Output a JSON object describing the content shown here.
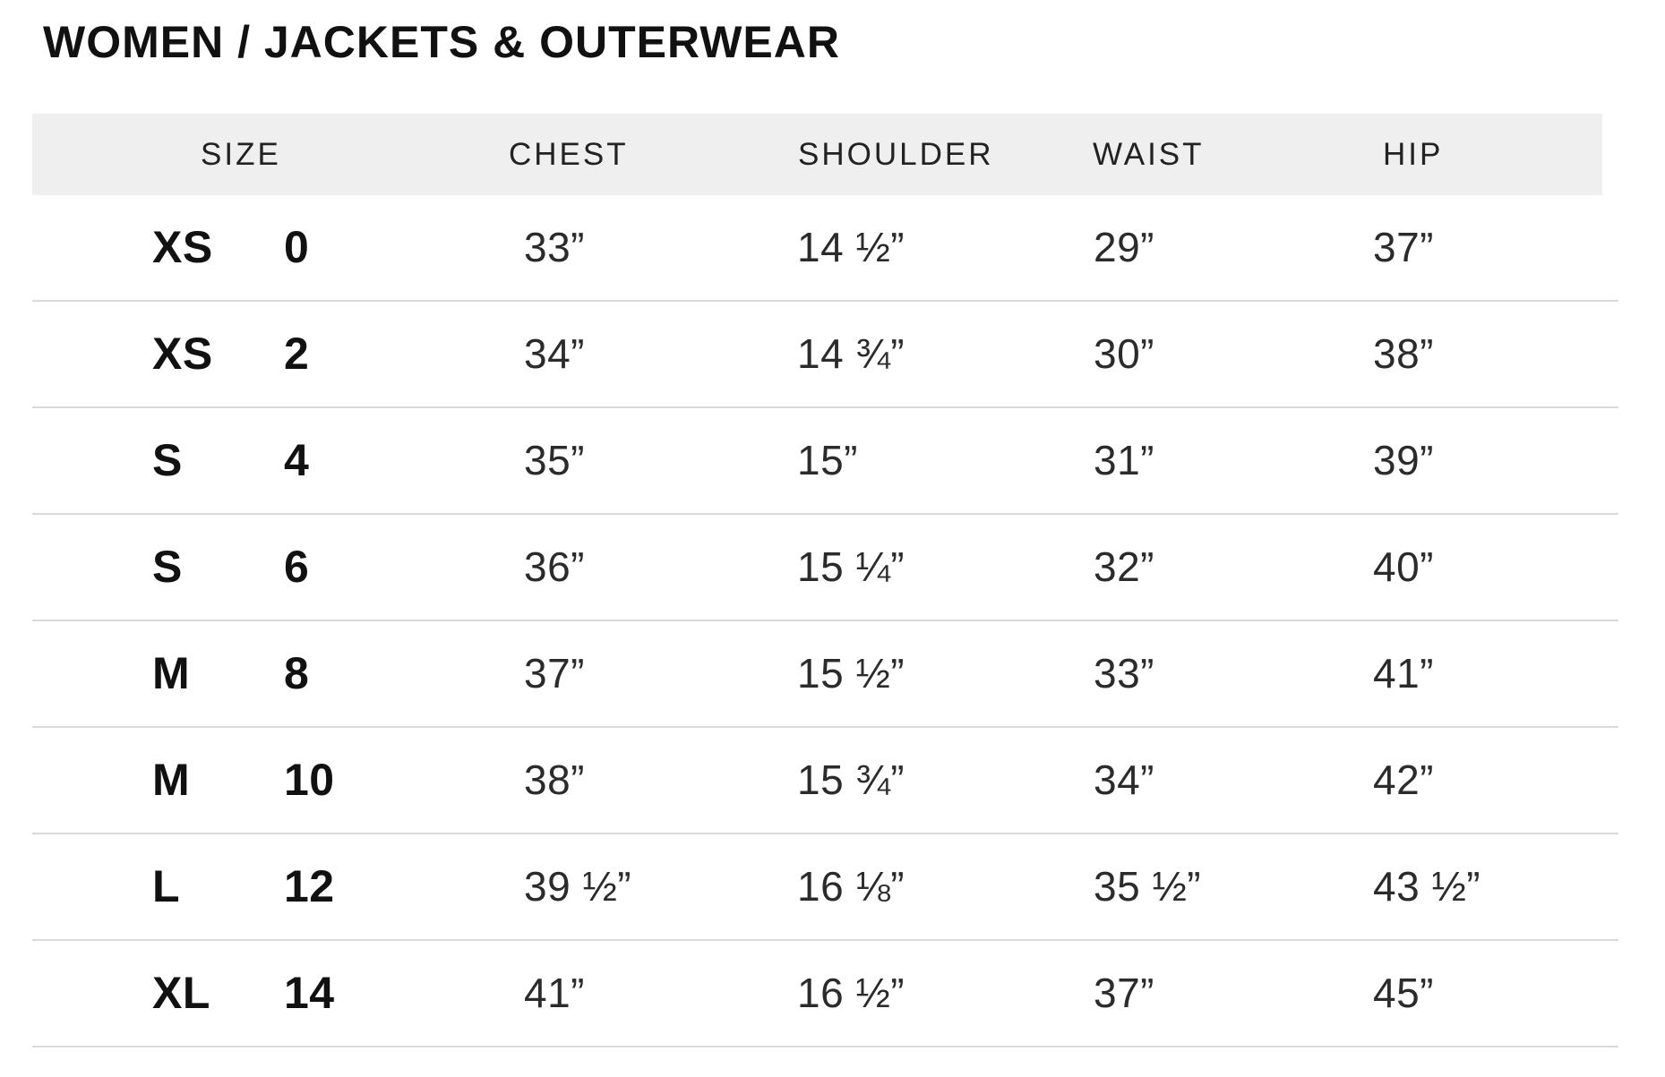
{
  "page": {
    "title": "WOMEN / JACKETS & OUTERWEAR"
  },
  "table": {
    "headers": {
      "size": "SIZE",
      "chest": "CHEST",
      "shoulder": "SHOULDER",
      "waist": "WAIST",
      "hip": "HIP"
    },
    "rows": [
      {
        "size_label": "XS",
        "size_number": "0",
        "chest": "33”",
        "shoulder": "14 ½”",
        "waist": "29”",
        "hip": "37”"
      },
      {
        "size_label": "XS",
        "size_number": "2",
        "chest": "34”",
        "shoulder": "14 ¾”",
        "waist": "30”",
        "hip": "38”"
      },
      {
        "size_label": "S",
        "size_number": "4",
        "chest": "35”",
        "shoulder": "15”",
        "waist": "31”",
        "hip": "39”"
      },
      {
        "size_label": "S",
        "size_number": "6",
        "chest": "36”",
        "shoulder": "15 ¼”",
        "waist": "32”",
        "hip": "40”"
      },
      {
        "size_label": "M",
        "size_number": "8",
        "chest": "37”",
        "shoulder": "15 ½”",
        "waist": "33”",
        "hip": "41”"
      },
      {
        "size_label": "M",
        "size_number": "10",
        "chest": "38”",
        "shoulder": "15 ¾”",
        "waist": "34”",
        "hip": "42”"
      },
      {
        "size_label": "L",
        "size_number": "12",
        "chest": "39 ½”",
        "shoulder": "16 ⅛”",
        "waist": "35 ½”",
        "hip": "43 ½”"
      },
      {
        "size_label": "XL",
        "size_number": "14",
        "chest": "41”",
        "shoulder": "16 ½”",
        "waist": "37”",
        "hip": "45”"
      }
    ],
    "colors": {
      "header_bg": "#efefef",
      "divider": "#d9d9d9",
      "text_bold": "#111111",
      "text_value": "#2b2b2b"
    }
  }
}
